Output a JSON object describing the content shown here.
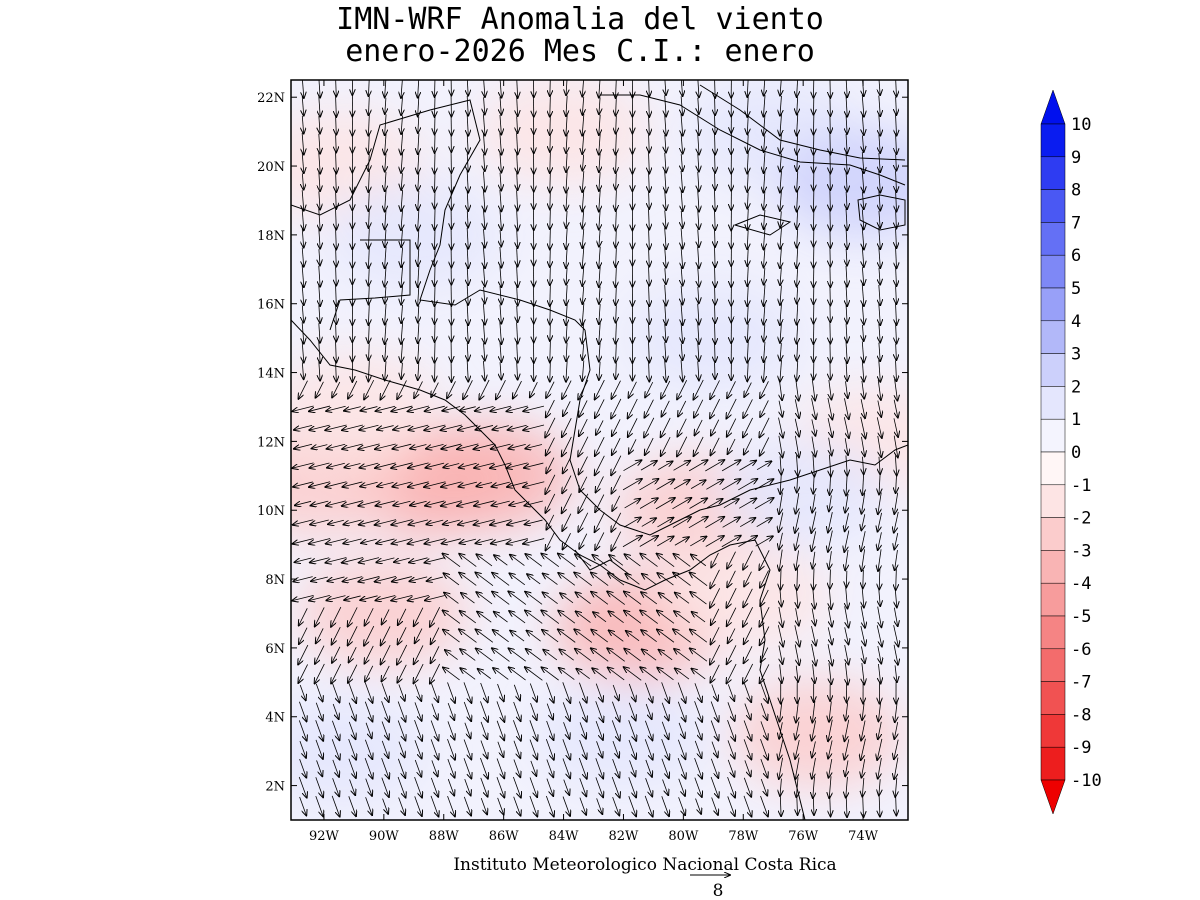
{
  "title": {
    "line1": "IMN-WRF Anomalia del viento",
    "line2": "enero-2026 Mes C.I.: enero"
  },
  "map": {
    "lon_range": [
      -93.1,
      -72.5
    ],
    "lat_range": [
      1.0,
      22.5
    ],
    "lat_ticks": [
      {
        "value": 22,
        "label": "22N"
      },
      {
        "value": 20,
        "label": "20N"
      },
      {
        "value": 18,
        "label": "18N"
      },
      {
        "value": 16,
        "label": "16N"
      },
      {
        "value": 14,
        "label": "14N"
      },
      {
        "value": 12,
        "label": "12N"
      },
      {
        "value": 10,
        "label": "10N"
      },
      {
        "value": 8,
        "label": "8N"
      },
      {
        "value": 6,
        "label": "6N"
      },
      {
        "value": 4,
        "label": "4N"
      },
      {
        "value": 2,
        "label": "2N"
      }
    ],
    "lon_ticks": [
      {
        "value": -92,
        "label": "92W"
      },
      {
        "value": -90,
        "label": "90W"
      },
      {
        "value": -88,
        "label": "88W"
      },
      {
        "value": -86,
        "label": "86W"
      },
      {
        "value": -84,
        "label": "84W"
      },
      {
        "value": -82,
        "label": "82W"
      },
      {
        "value": -80,
        "label": "80W"
      },
      {
        "value": -78,
        "label": "78W"
      },
      {
        "value": -76,
        "label": "76W"
      },
      {
        "value": -74,
        "label": "74W"
      }
    ],
    "anomaly_patches": [
      {
        "lon": -88.5,
        "lat": 10.8,
        "value": -3
      },
      {
        "lon": -92.3,
        "lat": 10.8,
        "value": -2
      },
      {
        "lon": -90.0,
        "lat": 7.0,
        "value": -2
      },
      {
        "lon": -86.5,
        "lat": 11.0,
        "value": -3
      },
      {
        "lon": -81.5,
        "lat": 6.6,
        "value": -3
      },
      {
        "lon": -79.5,
        "lat": 10.0,
        "value": -2
      },
      {
        "lon": -78.0,
        "lat": 7.5,
        "value": -1
      },
      {
        "lon": -91.0,
        "lat": 13.0,
        "value": -1
      },
      {
        "lon": -91.5,
        "lat": 20.0,
        "value": -1
      },
      {
        "lon": -84.0,
        "lat": 21.0,
        "value": -1
      },
      {
        "lon": -75.5,
        "lat": 3.5,
        "value": -2
      },
      {
        "lon": -73.5,
        "lat": 12.0,
        "value": -1
      },
      {
        "lon": -91.5,
        "lat": 3.0,
        "value": 1
      },
      {
        "lon": -82.0,
        "lat": 3.5,
        "value": 1
      },
      {
        "lon": -77.0,
        "lat": 21.0,
        "value": 1
      },
      {
        "lon": -74.0,
        "lat": 19.5,
        "value": 2
      },
      {
        "lon": -79.0,
        "lat": 15.0,
        "value": 1
      },
      {
        "lon": -89.0,
        "lat": 18.0,
        "value": 1
      },
      {
        "lon": -76.0,
        "lat": 10.5,
        "value": 1
      }
    ],
    "arrow_spacing_deg": 0.55,
    "barbs_note": "wind anomaly vectors"
  },
  "colorbar": {
    "labels": [
      "10",
      "9",
      "8",
      "7",
      "6",
      "5",
      "4",
      "3",
      "2",
      "1",
      "0",
      "-1",
      "-2",
      "-3",
      "-4",
      "-5",
      "-6",
      "-7",
      "-8",
      "-9",
      "-10"
    ],
    "colors": [
      "#0a1cf0",
      "#2e3cf2",
      "#4a58f3",
      "#6470f5",
      "#7e88f6",
      "#98a0f8",
      "#b2b8f9",
      "#ccd0fb",
      "#e4e6fd",
      "#f4f4fe",
      "#fff6f6",
      "#fde4e4",
      "#fbcccc",
      "#f9b4b4",
      "#f79c9c",
      "#f58484",
      "#f36c6c",
      "#f15252",
      "#ef3838",
      "#ed1e1e"
    ],
    "max_color": "#0010ee",
    "min_color": "#ee0000"
  },
  "credit": "Instituto Meteorologico Nacional Costa Rica",
  "reference_vector": {
    "value": "8"
  }
}
